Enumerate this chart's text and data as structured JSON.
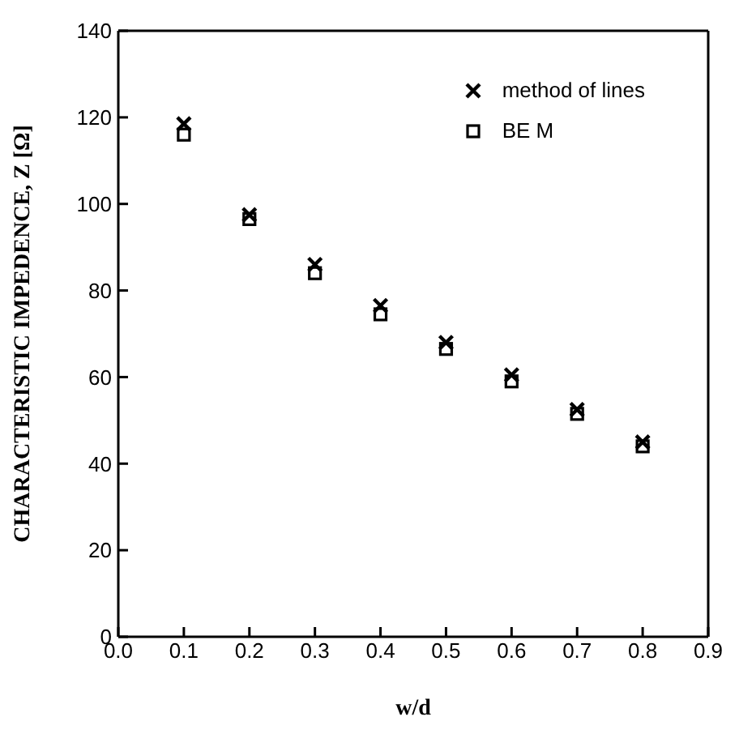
{
  "chart_data": {
    "type": "scatter",
    "xlabel": "w/d",
    "ylabel": "CHARACTERISTIC IMPEDENCE,  Z [Ω]",
    "xlim": [
      0,
      0.9
    ],
    "xticks": [
      {
        "value": 0,
        "label": "0.0"
      },
      {
        "value": 0.1,
        "label": "0.1"
      },
      {
        "value": 0.2,
        "label": "0.2"
      },
      {
        "value": 0.3,
        "label": "0.3"
      },
      {
        "value": 0.4,
        "label": "0.4"
      },
      {
        "value": 0.5,
        "label": "0.5"
      },
      {
        "value": 0.6,
        "label": "0.6"
      },
      {
        "value": 0.7,
        "label": "0.7"
      },
      {
        "value": 0.8,
        "label": "0.8"
      },
      {
        "value": 0.9,
        "label": "0.9"
      }
    ],
    "ylim": [
      0,
      140
    ],
    "yticks": [
      0,
      20,
      40,
      60,
      80,
      100,
      120,
      140
    ],
    "x": [
      0.1,
      0.2,
      0.3,
      0.4,
      0.5,
      0.6,
      0.7,
      0.8
    ],
    "series": [
      {
        "name": "method of lines",
        "color": "#000000",
        "marker": "cross",
        "values": [
          118.5,
          97.5,
          86,
          76.5,
          68,
          60.5,
          52.5,
          45
        ]
      },
      {
        "name": "BE M",
        "color": "#000000",
        "marker": "square",
        "values": [
          116,
          96.5,
          84,
          74.5,
          66.5,
          59,
          51.5,
          44
        ]
      }
    ],
    "legend": "top right"
  }
}
